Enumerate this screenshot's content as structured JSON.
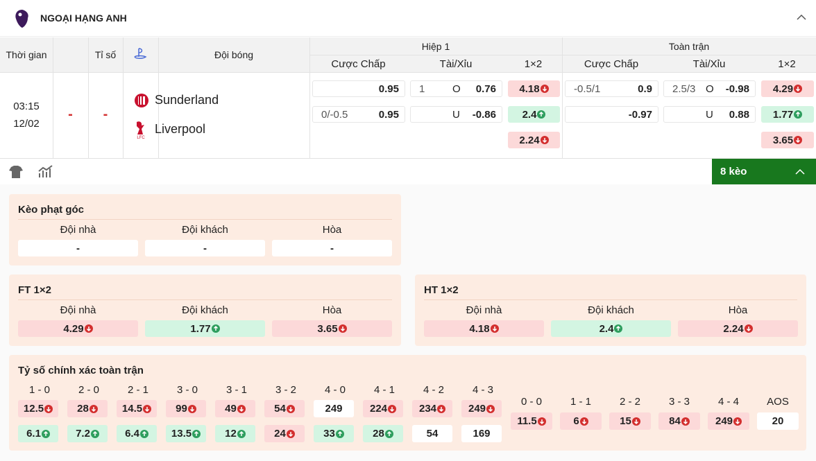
{
  "league": "NGOẠI HẠNG ANH",
  "header": {
    "time": "Thời gian",
    "score": "Tỉ số",
    "teams": "Đội bóng",
    "half1": "Hiệp 1",
    "full": "Toàn trận",
    "sub": [
      "Cược Chấp",
      "Tài/Xỉu",
      "1×2",
      "Cược Chấp",
      "Tài/Xỉu",
      "1×2"
    ]
  },
  "match": {
    "time": "03:15",
    "date": "12/02",
    "score_home": "-",
    "score_away": "-",
    "home": "Sunderland",
    "away": "Liverpool",
    "odds": [
      [
        {
          "v": "0.95"
        },
        {
          "line": "1",
          "side": "O",
          "v": "0.76"
        },
        {
          "v": "4.18",
          "trend": "down"
        },
        {
          "line": "-0.5/1",
          "v": "0.9"
        },
        {
          "line": "2.5/3",
          "side": "O",
          "v": "-0.98"
        },
        {
          "v": "4.29",
          "trend": "down"
        }
      ],
      [
        {
          "line": "0/-0.5",
          "v": "0.95"
        },
        {
          "side": "U",
          "v": "-0.86"
        },
        {
          "v": "2.4",
          "trend": "up"
        },
        {
          "v": "-0.97"
        },
        {
          "side": "U",
          "v": "0.88"
        },
        {
          "v": "1.77",
          "trend": "up"
        }
      ],
      [
        null,
        null,
        {
          "v": "2.24",
          "trend": "down"
        },
        null,
        null,
        {
          "v": "3.65",
          "trend": "down"
        }
      ]
    ]
  },
  "markets": "8 kèo",
  "corner": {
    "title": "Kèo phạt góc",
    "labels": [
      "Đội nhà",
      "Đội khách",
      "Hòa"
    ],
    "items": [
      {
        "v": "-"
      },
      {
        "v": "-"
      },
      {
        "v": "-"
      }
    ]
  },
  "ft": {
    "title": "FT 1×2",
    "labels": [
      "Đội nhà",
      "Đội khách",
      "Hòa"
    ],
    "items": [
      {
        "v": "4.29",
        "trend": "down"
      },
      {
        "v": "1.77",
        "trend": "up"
      },
      {
        "v": "3.65",
        "trend": "down"
      }
    ]
  },
  "ht": {
    "title": "HT 1×2",
    "labels": [
      "Đội nhà",
      "Đội khách",
      "Hòa"
    ],
    "items": [
      {
        "v": "4.18",
        "trend": "down"
      },
      {
        "v": "2.4",
        "trend": "up"
      },
      {
        "v": "2.24",
        "trend": "down"
      }
    ]
  },
  "correct_score": {
    "title": "Tỷ số chính xác toàn trận",
    "columns": [
      {
        "label": "1 - 0",
        "home": {
          "v": "12.5",
          "trend": "down"
        },
        "away": {
          "v": "6.1",
          "trend": "up"
        }
      },
      {
        "label": "2 - 0",
        "home": {
          "v": "28",
          "trend": "down"
        },
        "away": {
          "v": "7.2",
          "trend": "up"
        }
      },
      {
        "label": "2 - 1",
        "home": {
          "v": "14.5",
          "trend": "down"
        },
        "away": {
          "v": "6.4",
          "trend": "up"
        }
      },
      {
        "label": "3 - 0",
        "home": {
          "v": "99",
          "trend": "down"
        },
        "away": {
          "v": "13.5",
          "trend": "up"
        }
      },
      {
        "label": "3 - 1",
        "home": {
          "v": "49",
          "trend": "down"
        },
        "away": {
          "v": "12",
          "trend": "up"
        }
      },
      {
        "label": "3 - 2",
        "home": {
          "v": "54",
          "trend": "down"
        },
        "away": {
          "v": "24",
          "trend": "down"
        }
      },
      {
        "label": "4 - 0",
        "home": {
          "v": "249"
        },
        "away": {
          "v": "33",
          "trend": "up"
        }
      },
      {
        "label": "4 - 1",
        "home": {
          "v": "224",
          "trend": "down"
        },
        "away": {
          "v": "28",
          "trend": "up"
        }
      },
      {
        "label": "4 - 2",
        "home": {
          "v": "234",
          "trend": "down"
        },
        "away": {
          "v": "54"
        }
      },
      {
        "label": "4 - 3",
        "home": {
          "v": "249",
          "trend": "down"
        },
        "away": {
          "v": "169"
        }
      }
    ],
    "draws": [
      {
        "label": "0 - 0",
        "v": "11.5",
        "trend": "down"
      },
      {
        "label": "1 - 1",
        "v": "6",
        "trend": "down"
      },
      {
        "label": "2 - 2",
        "v": "15",
        "trend": "down"
      },
      {
        "label": "3 - 3",
        "v": "84",
        "trend": "down"
      },
      {
        "label": "4 - 4",
        "v": "249",
        "trend": "down"
      },
      {
        "label": "AOS",
        "v": "20"
      }
    ]
  }
}
